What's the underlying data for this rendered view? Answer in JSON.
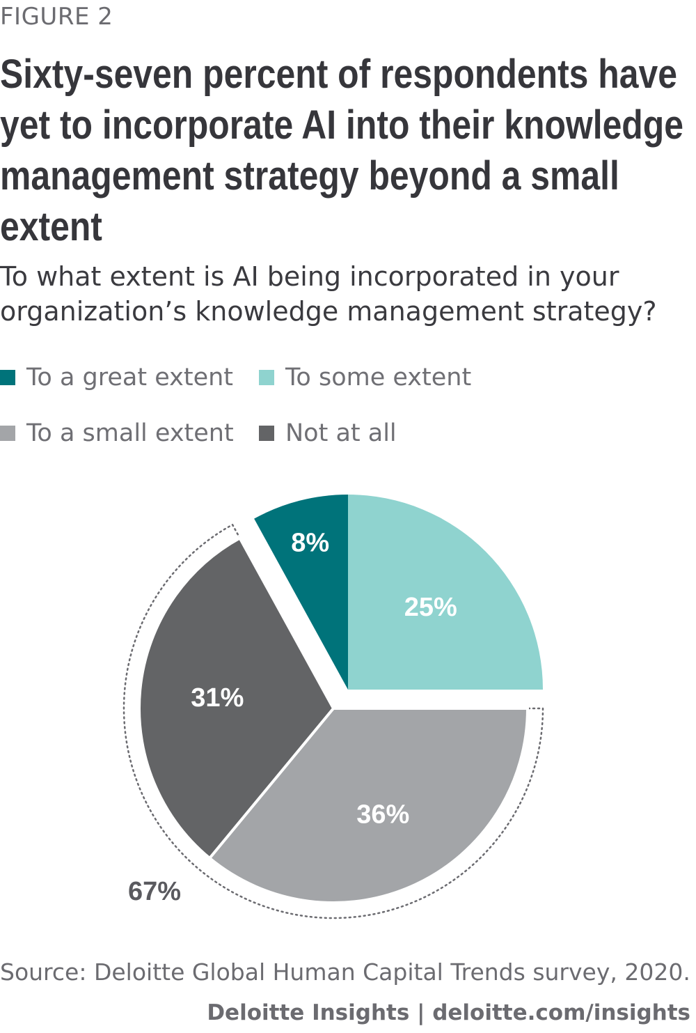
{
  "figure_label": "FIGURE 2",
  "source": "Source: Deloitte Global Human Capital Trends survey, 2020.",
  "credit": "Deloitte Insights | deloitte.com/insights",
  "chart_data": {
    "type": "pie",
    "title": "Sixty-seven percent of respondents have yet to incorporate AI into their knowledge management strategy beyond a small extent",
    "subtitle": "To what extent is AI being incorporated in your organization’s knowledge management strategy?",
    "legend_placement": "top-left",
    "categories": [
      "To a great extent",
      "To some extent",
      "To a small extent",
      "Not at all"
    ],
    "values": [
      8,
      25,
      36,
      31
    ],
    "value_labels": [
      "8%",
      "25%",
      "36%",
      "31%"
    ],
    "colors": [
      "#00737a",
      "#8fd3cf",
      "#a3a5a8",
      "#636466"
    ],
    "exploded_group": {
      "members": [
        "To a small extent",
        "Not at all"
      ],
      "total": 67,
      "label": "67%",
      "outline": "dotted"
    }
  }
}
